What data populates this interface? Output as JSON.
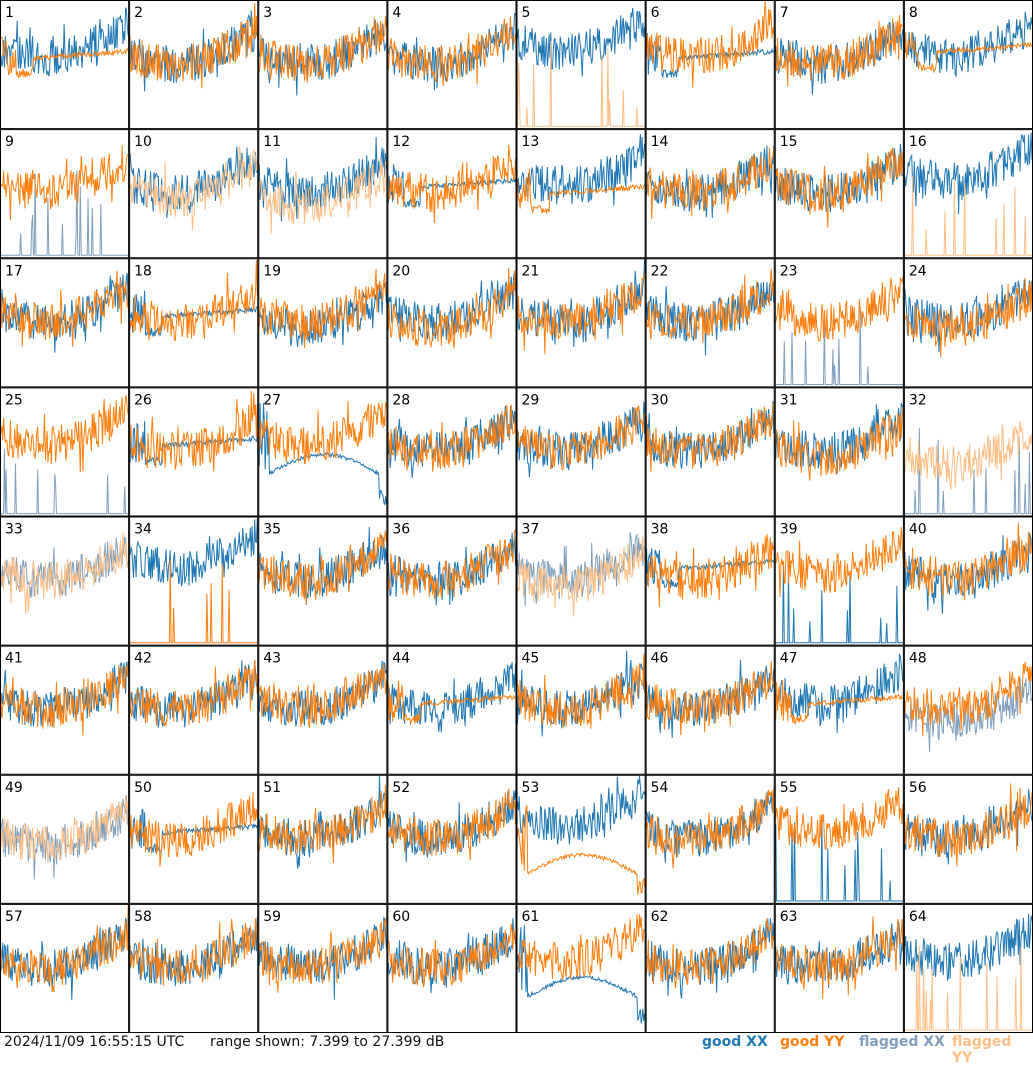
{
  "chart_data": {
    "type": "line",
    "layout": "8x8 grid of per-tile spectra",
    "y_range_db": [
      7.399,
      27.399
    ],
    "grid": false,
    "colors": {
      "good_xx": "#1f77b4",
      "good_yy": "#ff7f0e",
      "flagged_xx": "#7f9fbd",
      "flagged_yy": "#ffbf86"
    },
    "tiles": [
      {
        "label": "1",
        "xx": "good",
        "yy": "good",
        "xx_level": 20,
        "yy_level": 19,
        "xx_shape": "noisy",
        "yy_shape": "dip_flat"
      },
      {
        "label": "2",
        "xx": "good",
        "yy": "good",
        "xx_level": 19,
        "yy_level": 19,
        "xx_shape": "noisy",
        "yy_shape": "noisy"
      },
      {
        "label": "3",
        "xx": "good",
        "yy": "good",
        "xx_level": 19,
        "yy_level": 19,
        "xx_shape": "noisy",
        "yy_shape": "noisy"
      },
      {
        "label": "4",
        "xx": "good",
        "yy": "good",
        "xx_level": 19,
        "yy_level": 19,
        "xx_shape": "noisy",
        "yy_shape": "noisy"
      },
      {
        "label": "5",
        "xx": "good",
        "yy": "flagged",
        "xx_level": 21,
        "yy_level": 8,
        "xx_shape": "noisy",
        "yy_shape": "spikes"
      },
      {
        "label": "6",
        "xx": "good",
        "yy": "good",
        "xx_level": 19,
        "yy_level": 20,
        "xx_shape": "dip_flat",
        "yy_shape": "noisy"
      },
      {
        "label": "7",
        "xx": "good",
        "yy": "good",
        "xx_level": 19,
        "yy_level": 19,
        "xx_shape": "noisy",
        "yy_shape": "noisy"
      },
      {
        "label": "8",
        "xx": "good",
        "yy": "good",
        "xx_level": 20,
        "yy_level": 20,
        "xx_shape": "noisy",
        "yy_shape": "dip_flat"
      },
      {
        "label": "9",
        "xx": "flagged",
        "yy": "good",
        "xx_level": 8,
        "yy_level": 19,
        "xx_shape": "spikes",
        "yy_shape": "noisy"
      },
      {
        "label": "10",
        "xx": "good",
        "yy": "flagged",
        "xx_level": 19,
        "yy_level": 18,
        "xx_shape": "noisy",
        "yy_shape": "noisy"
      },
      {
        "label": "11",
        "xx": "good",
        "yy": "flagged",
        "xx_level": 19,
        "yy_level": 17,
        "xx_shape": "noisy",
        "yy_shape": "noisy"
      },
      {
        "label": "12",
        "xx": "good",
        "yy": "good",
        "xx_level": 19,
        "yy_level": 19,
        "xx_shape": "dip_flat",
        "yy_shape": "noisy"
      },
      {
        "label": "13",
        "xx": "good",
        "yy": "good",
        "xx_level": 20,
        "yy_level": 18,
        "xx_shape": "noisy",
        "yy_shape": "dip_flat"
      },
      {
        "label": "14",
        "xx": "good",
        "yy": "good",
        "xx_level": 19,
        "yy_level": 19,
        "xx_shape": "noisy",
        "yy_shape": "noisy"
      },
      {
        "label": "15",
        "xx": "good",
        "yy": "good",
        "xx_level": 19,
        "yy_level": 19,
        "xx_shape": "noisy",
        "yy_shape": "noisy"
      },
      {
        "label": "16",
        "xx": "good",
        "yy": "flagged",
        "xx_level": 21,
        "yy_level": 8,
        "xx_shape": "noisy",
        "yy_shape": "spikes"
      },
      {
        "label": "17",
        "xx": "good",
        "yy": "good",
        "xx_level": 19,
        "yy_level": 19,
        "xx_shape": "noisy",
        "yy_shape": "noisy"
      },
      {
        "label": "18",
        "xx": "good",
        "yy": "good",
        "xx_level": 19,
        "yy_level": 19,
        "xx_shape": "dip_flat",
        "yy_shape": "noisy"
      },
      {
        "label": "19",
        "xx": "good",
        "yy": "good",
        "xx_level": 18,
        "yy_level": 19,
        "xx_shape": "noisy",
        "yy_shape": "noisy"
      },
      {
        "label": "20",
        "xx": "good",
        "yy": "good",
        "xx_level": 19,
        "yy_level": 18,
        "xx_shape": "noisy",
        "yy_shape": "noisy"
      },
      {
        "label": "21",
        "xx": "good",
        "yy": "good",
        "xx_level": 19,
        "yy_level": 19,
        "xx_shape": "noisy",
        "yy_shape": "noisy"
      },
      {
        "label": "22",
        "xx": "good",
        "yy": "good",
        "xx_level": 19,
        "yy_level": 19,
        "xx_shape": "noisy",
        "yy_shape": "noisy"
      },
      {
        "label": "23",
        "xx": "flagged",
        "yy": "good",
        "xx_level": 14,
        "yy_level": 19,
        "xx_shape": "spikes",
        "yy_shape": "noisy"
      },
      {
        "label": "24",
        "xx": "good",
        "yy": "good",
        "xx_level": 19,
        "yy_level": 18,
        "xx_shape": "noisy",
        "yy_shape": "noisy"
      },
      {
        "label": "25",
        "xx": "flagged",
        "yy": "good",
        "xx_level": 8,
        "yy_level": 20,
        "xx_shape": "spikes",
        "yy_shape": "noisy"
      },
      {
        "label": "26",
        "xx": "good",
        "yy": "good",
        "xx_level": 19,
        "yy_level": 19,
        "xx_shape": "dip_flat",
        "yy_shape": "noisy"
      },
      {
        "label": "27",
        "xx": "good",
        "yy": "good",
        "xx_level": 15,
        "yy_level": 20,
        "xx_shape": "bowl",
        "yy_shape": "noisy"
      },
      {
        "label": "28",
        "xx": "good",
        "yy": "good",
        "xx_level": 19,
        "yy_level": 19,
        "xx_shape": "noisy",
        "yy_shape": "noisy"
      },
      {
        "label": "29",
        "xx": "good",
        "yy": "good",
        "xx_level": 19,
        "yy_level": 19,
        "xx_shape": "noisy",
        "yy_shape": "noisy"
      },
      {
        "label": "30",
        "xx": "good",
        "yy": "good",
        "xx_level": 19,
        "yy_level": 19,
        "xx_shape": "noisy",
        "yy_shape": "noisy"
      },
      {
        "label": "31",
        "xx": "good",
        "yy": "good",
        "xx_level": 19,
        "yy_level": 18,
        "xx_shape": "noisy",
        "yy_shape": "noisy"
      },
      {
        "label": "32",
        "xx": "flagged",
        "yy": "flagged",
        "xx_level": 8,
        "yy_level": 17,
        "xx_shape": "spikes",
        "yy_shape": "noisy"
      },
      {
        "label": "33",
        "xx": "flagged",
        "yy": "flagged",
        "xx_level": 19,
        "yy_level": 19,
        "xx_shape": "noisy",
        "yy_shape": "noisy"
      },
      {
        "label": "34",
        "xx": "good",
        "yy": "good",
        "xx_level": 21,
        "yy_level": 9,
        "xx_shape": "noisy",
        "yy_shape": "spikes"
      },
      {
        "label": "35",
        "xx": "good",
        "yy": "good",
        "xx_level": 19,
        "yy_level": 19,
        "xx_shape": "noisy",
        "yy_shape": "noisy"
      },
      {
        "label": "36",
        "xx": "good",
        "yy": "good",
        "xx_level": 19,
        "yy_level": 19,
        "xx_shape": "noisy",
        "yy_shape": "noisy"
      },
      {
        "label": "37",
        "xx": "flagged",
        "yy": "flagged",
        "xx_level": 19,
        "yy_level": 18,
        "xx_shape": "noisy",
        "yy_shape": "noisy"
      },
      {
        "label": "38",
        "xx": "good",
        "yy": "good",
        "xx_level": 20,
        "yy_level": 19,
        "xx_shape": "dip_flat",
        "yy_shape": "noisy"
      },
      {
        "label": "39",
        "xx": "good",
        "yy": "good",
        "xx_level": 8,
        "yy_level": 20,
        "xx_shape": "spikes",
        "yy_shape": "noisy"
      },
      {
        "label": "40",
        "xx": "good",
        "yy": "good",
        "xx_level": 19,
        "yy_level": 19,
        "xx_shape": "noisy",
        "yy_shape": "noisy"
      },
      {
        "label": "41",
        "xx": "good",
        "yy": "good",
        "xx_level": 19,
        "yy_level": 19,
        "xx_shape": "noisy",
        "yy_shape": "noisy"
      },
      {
        "label": "42",
        "xx": "good",
        "yy": "good",
        "xx_level": 19,
        "yy_level": 19,
        "xx_shape": "noisy",
        "yy_shape": "noisy"
      },
      {
        "label": "43",
        "xx": "good",
        "yy": "good",
        "xx_level": 19,
        "yy_level": 19,
        "xx_shape": "noisy",
        "yy_shape": "noisy"
      },
      {
        "label": "44",
        "xx": "good",
        "yy": "good",
        "xx_level": 19,
        "yy_level": 19,
        "xx_shape": "noisy",
        "yy_shape": "dip_flat"
      },
      {
        "label": "45",
        "xx": "good",
        "yy": "good",
        "xx_level": 19,
        "yy_level": 19,
        "xx_shape": "noisy",
        "yy_shape": "noisy"
      },
      {
        "label": "46",
        "xx": "good",
        "yy": "good",
        "xx_level": 19,
        "yy_level": 19,
        "xx_shape": "noisy",
        "yy_shape": "noisy"
      },
      {
        "label": "47",
        "xx": "good",
        "yy": "good",
        "xx_level": 20,
        "yy_level": 19,
        "xx_shape": "noisy",
        "yy_shape": "dip_flat"
      },
      {
        "label": "48",
        "xx": "flagged",
        "yy": "good",
        "xx_level": 17,
        "yy_level": 19,
        "xx_shape": "noisy",
        "yy_shape": "noisy"
      },
      {
        "label": "49",
        "xx": "flagged",
        "yy": "flagged",
        "xx_level": 18,
        "yy_level": 18,
        "xx_shape": "noisy",
        "yy_shape": "noisy"
      },
      {
        "label": "50",
        "xx": "good",
        "yy": "good",
        "xx_level": 19,
        "yy_level": 19,
        "xx_shape": "dip_flat",
        "yy_shape": "noisy"
      },
      {
        "label": "51",
        "xx": "good",
        "yy": "good",
        "xx_level": 19,
        "yy_level": 19,
        "xx_shape": "noisy",
        "yy_shape": "noisy"
      },
      {
        "label": "52",
        "xx": "good",
        "yy": "good",
        "xx_level": 19,
        "yy_level": 19,
        "xx_shape": "noisy",
        "yy_shape": "noisy"
      },
      {
        "label": "53",
        "xx": "good",
        "yy": "good",
        "xx_level": 21,
        "yy_level": 13,
        "xx_shape": "noisy",
        "yy_shape": "bowl"
      },
      {
        "label": "54",
        "xx": "good",
        "yy": "good",
        "xx_level": 19,
        "yy_level": 19,
        "xx_shape": "noisy",
        "yy_shape": "noisy"
      },
      {
        "label": "55",
        "xx": "good",
        "yy": "good",
        "xx_level": 9,
        "yy_level": 20,
        "xx_shape": "spikes",
        "yy_shape": "noisy"
      },
      {
        "label": "56",
        "xx": "good",
        "yy": "good",
        "xx_level": 19,
        "yy_level": 19,
        "xx_shape": "noisy",
        "yy_shape": "noisy"
      },
      {
        "label": "57",
        "xx": "good",
        "yy": "good",
        "xx_level": 19,
        "yy_level": 19,
        "xx_shape": "noisy",
        "yy_shape": "noisy"
      },
      {
        "label": "58",
        "xx": "good",
        "yy": "good",
        "xx_level": 19,
        "yy_level": 19,
        "xx_shape": "noisy",
        "yy_shape": "noisy"
      },
      {
        "label": "59",
        "xx": "good",
        "yy": "good",
        "xx_level": 19,
        "yy_level": 19,
        "xx_shape": "noisy",
        "yy_shape": "noisy"
      },
      {
        "label": "60",
        "xx": "good",
        "yy": "good",
        "xx_level": 19,
        "yy_level": 19,
        "xx_shape": "noisy",
        "yy_shape": "noisy"
      },
      {
        "label": "61",
        "xx": "good",
        "yy": "good",
        "xx_level": 14,
        "yy_level": 20,
        "xx_shape": "bowl",
        "yy_shape": "noisy"
      },
      {
        "label": "62",
        "xx": "good",
        "yy": "good",
        "xx_level": 19,
        "yy_level": 19,
        "xx_shape": "noisy",
        "yy_shape": "noisy"
      },
      {
        "label": "63",
        "xx": "good",
        "yy": "good",
        "xx_level": 19,
        "yy_level": 19,
        "xx_shape": "noisy",
        "yy_shape": "noisy"
      },
      {
        "label": "64",
        "xx": "good",
        "yy": "flagged",
        "xx_level": 20,
        "yy_level": 8,
        "xx_shape": "noisy",
        "yy_shape": "spikes"
      }
    ]
  },
  "footer": {
    "timestamp": "2024/11/09 16:55:15 UTC",
    "range_text": "range shown: 7.399 to 27.399 dB",
    "legend": {
      "good_xx": "good XX",
      "good_yy": "good YY",
      "flagged_xx": "flagged XX",
      "flagged_yy": "flagged YY"
    }
  }
}
